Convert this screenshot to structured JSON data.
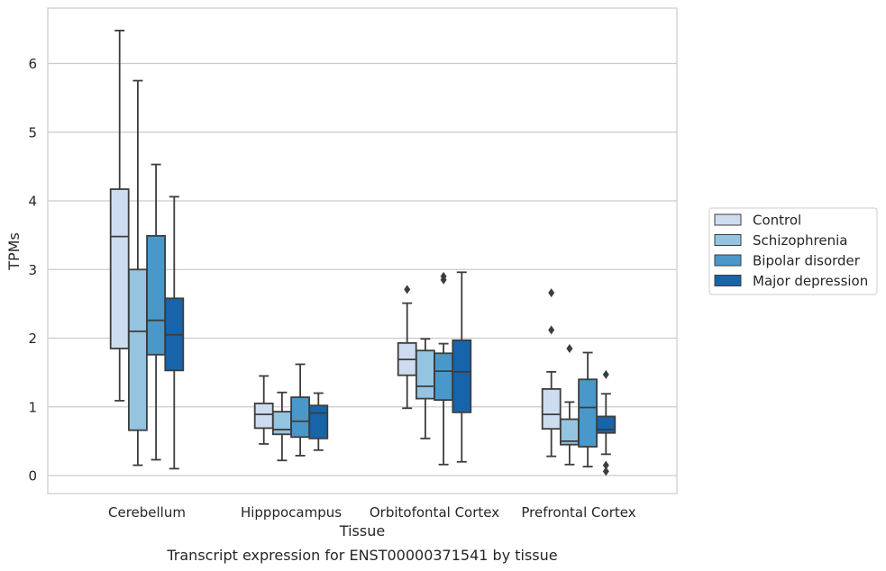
{
  "chart_data": {
    "type": "box",
    "caption": "Transcript expression for ENST00000371541 by tissue",
    "xlabel": "Tissue",
    "ylabel": "TPMs",
    "ylim": [
      -0.25,
      6.8
    ],
    "yticks": [
      0,
      1,
      2,
      3,
      4,
      5,
      6
    ],
    "categories": [
      "Cerebellum",
      "Hipppocampus",
      "Orbitofontal Cortex",
      "Prefrontal Cortex"
    ],
    "grid": "horizontal",
    "legend_position": "right",
    "series": [
      {
        "name": "Control",
        "color": "#cddcee",
        "boxes": [
          {
            "whislo": 1.09,
            "q1": 1.85,
            "med": 3.48,
            "q3": 4.17,
            "whishi": 6.48,
            "fliers": []
          },
          {
            "whislo": 0.46,
            "q1": 0.69,
            "med": 0.89,
            "q3": 1.05,
            "whishi": 1.45,
            "fliers": []
          },
          {
            "whislo": 0.98,
            "q1": 1.46,
            "med": 1.69,
            "q3": 1.93,
            "whishi": 2.51,
            "fliers": [
              2.71
            ]
          },
          {
            "whislo": 0.28,
            "q1": 0.68,
            "med": 0.89,
            "q3": 1.26,
            "whishi": 1.51,
            "fliers": [
              2.12,
              2.66
            ]
          }
        ]
      },
      {
        "name": "Schizophrenia",
        "color": "#94c4df",
        "boxes": [
          {
            "whislo": 0.15,
            "q1": 0.66,
            "med": 2.1,
            "q3": 3.0,
            "whishi": 5.75,
            "fliers": []
          },
          {
            "whislo": 0.22,
            "q1": 0.6,
            "med": 0.67,
            "q3": 0.93,
            "whishi": 1.21,
            "fliers": []
          },
          {
            "whislo": 0.54,
            "q1": 1.12,
            "med": 1.3,
            "q3": 1.82,
            "whishi": 1.99,
            "fliers": []
          },
          {
            "whislo": 0.16,
            "q1": 0.45,
            "med": 0.5,
            "q3": 0.82,
            "whishi": 1.07,
            "fliers": [
              1.85
            ]
          }
        ]
      },
      {
        "name": "Bipolar disorder",
        "color": "#4a98c9",
        "boxes": [
          {
            "whislo": 0.23,
            "q1": 1.76,
            "med": 2.26,
            "q3": 3.49,
            "whishi": 4.53,
            "fliers": []
          },
          {
            "whislo": 0.29,
            "q1": 0.56,
            "med": 0.79,
            "q3": 1.14,
            "whishi": 1.62,
            "fliers": []
          },
          {
            "whislo": 0.16,
            "q1": 1.1,
            "med": 1.52,
            "q3": 1.78,
            "whishi": 1.92,
            "fliers": [
              2.85,
              2.9
            ]
          },
          {
            "whislo": 0.13,
            "q1": 0.42,
            "med": 0.99,
            "q3": 1.4,
            "whishi": 1.79,
            "fliers": []
          }
        ]
      },
      {
        "name": "Major depression",
        "color": "#1764ab",
        "boxes": [
          {
            "whislo": 0.1,
            "q1": 1.53,
            "med": 2.05,
            "q3": 2.58,
            "whishi": 4.06,
            "fliers": []
          },
          {
            "whislo": 0.37,
            "q1": 0.54,
            "med": 0.91,
            "q3": 1.02,
            "whishi": 1.2,
            "fliers": []
          },
          {
            "whislo": 0.2,
            "q1": 0.92,
            "med": 1.51,
            "q3": 1.97,
            "whishi": 2.96,
            "fliers": []
          },
          {
            "whislo": 0.31,
            "q1": 0.62,
            "med": 0.67,
            "q3": 0.86,
            "whishi": 1.19,
            "fliers": [
              0.06,
              0.15,
              1.47
            ]
          }
        ]
      }
    ]
  }
}
